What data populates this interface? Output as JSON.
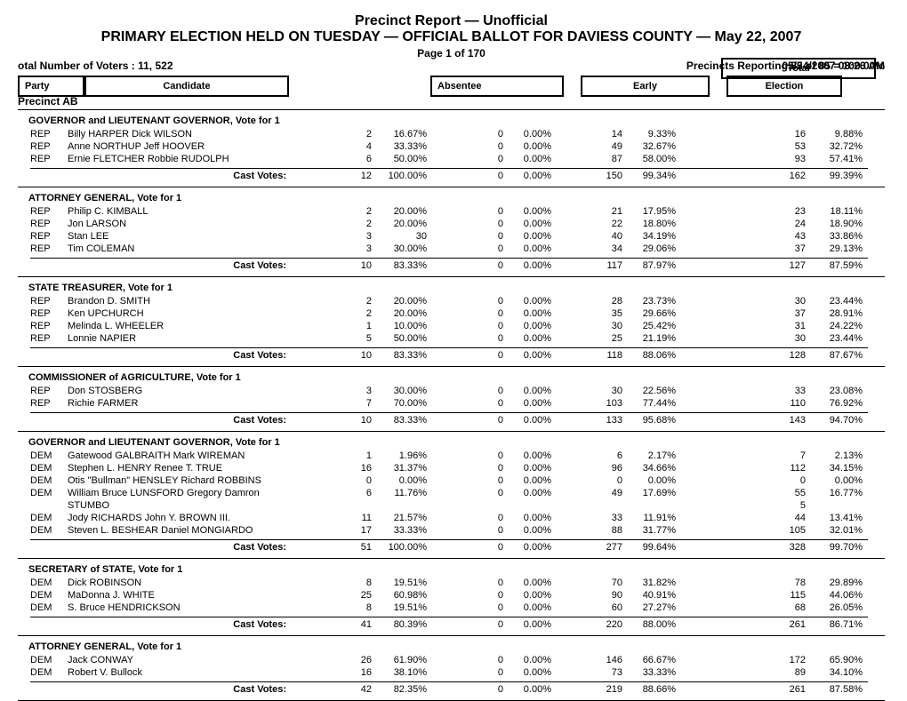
{
  "header": {
    "title1": "Precinct Report  —  Unofficial",
    "title2": "PRIMARY ELECTION HELD ON TUESDAY  —  OFFICIAL BALLOT FOR DAVIESS COUNTY  —  May 22, 2007",
    "page_of": "Page 1 of 170",
    "timestamp": "05/24/2007 08:26 AM",
    "voters": "otal Number of Voters : 11, 522",
    "precincts_reporting": "Precincts Reporting 85 of 85 = 100.00%",
    "cols": {
      "party": "Party",
      "candidate": "Candidate",
      "absentee": "Absentee",
      "early": "Early",
      "election": "Election",
      "total": "Total"
    }
  },
  "precinct": "Precinct AB",
  "cast_label": "Cast Votes:",
  "sections": [
    {
      "title": "GOVERNOR and LIEUTENANT GOVERNOR, Vote for 1",
      "rows": [
        {
          "party": "REP",
          "cand": "Billy HARPER Dick WILSON",
          "a": "2",
          "ap": "16.67%",
          "e": "0",
          "ep": "0.00%",
          "el": "14",
          "elp": "9.33%",
          "t": "16",
          "tp": "9.88%"
        },
        {
          "party": "REP",
          "cand": "Anne NORTHUP Jeff HOOVER",
          "a": "4",
          "ap": "33.33%",
          "e": "0",
          "ep": "0.00%",
          "el": "49",
          "elp": "32.67%",
          "t": "53",
          "tp": "32.72%"
        },
        {
          "party": "REP",
          "cand": "Ernie FLETCHER Robbie RUDOLPH",
          "a": "6",
          "ap": "50.00%",
          "e": "0",
          "ep": "0.00%",
          "el": "87",
          "elp": "58.00%",
          "t": "93",
          "tp": "57.41%"
        }
      ],
      "cast": {
        "a": "12",
        "ap": "100.00%",
        "e": "0",
        "ep": "0.00%",
        "el": "150",
        "elp": "99.34%",
        "t": "162",
        "tp": "99.39%"
      }
    },
    {
      "title": "ATTORNEY GENERAL, Vote for 1",
      "rows": [
        {
          "party": "REP",
          "cand": "Philip C. KIMBALL",
          "a": "2",
          "ap": "20.00%",
          "e": "0",
          "ep": "0.00%",
          "el": "21",
          "elp": "17.95%",
          "t": "23",
          "tp": "18.11%"
        },
        {
          "party": "REP",
          "cand": "Jon LARSON",
          "a": "2",
          "ap": "20.00%",
          "e": "0",
          "ep": "0.00%",
          "el": "22",
          "elp": "18.80%",
          "t": "24",
          "tp": "18.90%"
        },
        {
          "party": "REP",
          "cand": "Stan LEE",
          "a": "3",
          "ap": "30",
          "e": "0",
          "ep": "0.00%",
          "el": "40",
          "elp": "34.19%",
          "t": "43",
          "tp": "33.86%"
        },
        {
          "party": "REP",
          "cand": "Tim COLEMAN",
          "a": "3",
          "ap": "30.00%",
          "e": "0",
          "ep": "0.00%",
          "el": "34",
          "elp": "29.06%",
          "t": "37",
          "tp": "29.13%"
        }
      ],
      "cast": {
        "a": "10",
        "ap": "83.33%",
        "e": "0",
        "ep": "0.00%",
        "el": "117",
        "elp": "87.97%",
        "t": "127",
        "tp": "87.59%"
      }
    },
    {
      "title": "STATE TREASURER, Vote for 1",
      "rows": [
        {
          "party": "REP",
          "cand": "Brandon D. SMITH",
          "a": "2",
          "ap": "20.00%",
          "e": "0",
          "ep": "0.00%",
          "el": "28",
          "elp": "23.73%",
          "t": "30",
          "tp": "23.44%"
        },
        {
          "party": "REP",
          "cand": "Ken UPCHURCH",
          "a": "2",
          "ap": "20.00%",
          "e": "0",
          "ep": "0.00%",
          "el": "35",
          "elp": "29.66%",
          "t": "37",
          "tp": "28.91%"
        },
        {
          "party": "REP",
          "cand": "Melinda L. WHEELER",
          "a": "1",
          "ap": "10.00%",
          "e": "0",
          "ep": "0.00%",
          "el": "30",
          "elp": "25.42%",
          "t": "31",
          "tp": "24.22%"
        },
        {
          "party": "REP",
          "cand": "Lonnie NAPIER",
          "a": "5",
          "ap": "50.00%",
          "e": "0",
          "ep": "0.00%",
          "el": "25",
          "elp": "21.19%",
          "t": "30",
          "tp": "23.44%"
        }
      ],
      "cast": {
        "a": "10",
        "ap": "83.33%",
        "e": "0",
        "ep": "0.00%",
        "el": "118",
        "elp": "88.06%",
        "t": "128",
        "tp": "87.67%"
      }
    },
    {
      "title": "COMMISSIONER of AGRICULTURE, Vote for 1",
      "rows": [
        {
          "party": "REP",
          "cand": "Don STOSBERG",
          "a": "3",
          "ap": "30.00%",
          "e": "0",
          "ep": "0.00%",
          "el": "30",
          "elp": "22.56%",
          "t": "33",
          "tp": "23.08%"
        },
        {
          "party": "REP",
          "cand": "Richie FARMER",
          "a": "7",
          "ap": "70.00%",
          "e": "0",
          "ep": "0.00%",
          "el": "103",
          "elp": "77.44%",
          "t": "110",
          "tp": "76.92%"
        }
      ],
      "cast": {
        "a": "10",
        "ap": "83.33%",
        "e": "0",
        "ep": "0.00%",
        "el": "133",
        "elp": "95.68%",
        "t": "143",
        "tp": "94.70%"
      }
    },
    {
      "title": "GOVERNOR and LIEUTENANT GOVERNOR, Vote for 1",
      "rows": [
        {
          "party": "DEM",
          "cand": "Gatewood GALBRAITH Mark WIREMAN",
          "a": "1",
          "ap": "1.96%",
          "e": "0",
          "ep": "0.00%",
          "el": "6",
          "elp": "2.17%",
          "t": "7",
          "tp": "2.13%"
        },
        {
          "party": "DEM",
          "cand": "Stephen L. HENRY Renee T. TRUE",
          "a": "16",
          "ap": "31.37%",
          "e": "0",
          "ep": "0.00%",
          "el": "96",
          "elp": "34.66%",
          "t": "112",
          "tp": "34.15%"
        },
        {
          "party": "DEM",
          "cand": "Otis \"Bullman\" HENSLEY Richard ROBBINS",
          "a": "0",
          "ap": "0.00%",
          "e": "0",
          "ep": "0.00%",
          "el": "0",
          "elp": "0.00%",
          "t": "0",
          "tp": "0.00%"
        },
        {
          "party": "DEM",
          "cand": "William Bruce LUNSFORD Gregory Damron",
          "a": "6",
          "ap": "11.76%",
          "e": "0",
          "ep": "0.00%",
          "el": "49",
          "elp": "17.69%",
          "t": "55",
          "tp": "16.77%"
        }
      ],
      "extra_line": "STUMBO",
      "orphan_t": "5",
      "rows2": [
        {
          "party": "DEM",
          "cand": "Jody RICHARDS John Y. BROWN III.",
          "a": "11",
          "ap": "21.57%",
          "e": "0",
          "ep": "0.00%",
          "el": "33",
          "elp": "11.91%",
          "t": "44",
          "tp": "13.41%"
        },
        {
          "party": "DEM",
          "cand": "Steven L. BESHEAR Daniel MONGIARDO",
          "a": "17",
          "ap": "33.33%",
          "e": "0",
          "ep": "0.00%",
          "el": "88",
          "elp": "31.77%",
          "t": "105",
          "tp": "32.01%"
        }
      ],
      "cast": {
        "a": "51",
        "ap": "100.00%",
        "e": "0",
        "ep": "0.00%",
        "el": "277",
        "elp": "99.64%",
        "t": "328",
        "tp": "99.70%"
      }
    },
    {
      "title": "SECRETARY of STATE, Vote for 1",
      "rows": [
        {
          "party": "DEM",
          "cand": "Dick ROBINSON",
          "a": "8",
          "ap": "19.51%",
          "e": "0",
          "ep": "0.00%",
          "el": "70",
          "elp": "31.82%",
          "t": "78",
          "tp": "29.89%"
        },
        {
          "party": "DEM",
          "cand": "MaDonna J. WHITE",
          "a": "25",
          "ap": "60.98%",
          "e": "0",
          "ep": "0.00%",
          "el": "90",
          "elp": "40.91%",
          "t": "115",
          "tp": "44.06%"
        },
        {
          "party": "DEM",
          "cand": "S. Bruce HENDRICKSON",
          "a": "8",
          "ap": "19.51%",
          "e": "0",
          "ep": "0.00%",
          "el": "60",
          "elp": "27.27%",
          "t": "68",
          "tp": "26.05%"
        }
      ],
      "cast": {
        "a": "41",
        "ap": "80.39%",
        "e": "0",
        "ep": "0.00%",
        "el": "220",
        "elp": "88.00%",
        "t": "261",
        "tp": "86.71%"
      }
    },
    {
      "title": "ATTORNEY GENERAL, Vote for 1",
      "rows": [
        {
          "party": "DEM",
          "cand": "Jack CONWAY",
          "a": "26",
          "ap": "61.90%",
          "e": "0",
          "ep": "0.00%",
          "el": "146",
          "elp": "66.67%",
          "t": "172",
          "tp": "65.90%"
        },
        {
          "party": "DEM",
          "cand": "Robert V. Bullock",
          "a": "16",
          "ap": "38.10%",
          "e": "0",
          "ep": "0.00%",
          "el": "73",
          "elp": "33.33%",
          "t": "89",
          "tp": "34.10%"
        }
      ],
      "cast": {
        "a": "42",
        "ap": "82.35%",
        "e": "0",
        "ep": "0.00%",
        "el": "219",
        "elp": "88.66%",
        "t": "261",
        "tp": "87.58%"
      }
    }
  ]
}
